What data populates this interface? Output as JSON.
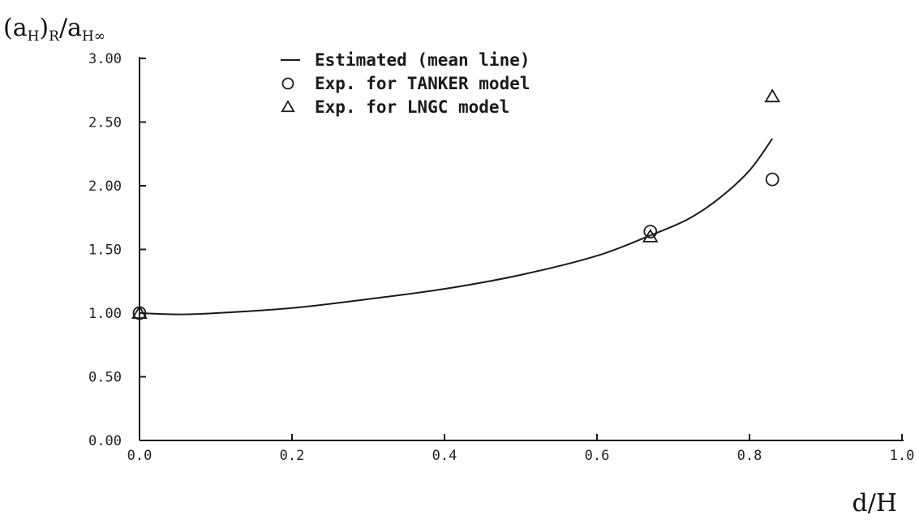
{
  "chart_data": {
    "type": "line",
    "xlabel": "d/H",
    "ylabel": {
      "parts": [
        {
          "t": "(a",
          "sub": false
        },
        {
          "t": "H",
          "sub": true
        },
        {
          "t": ")",
          "sub": false
        },
        {
          "t": "R",
          "sub": true
        },
        {
          "t": "/a",
          "sub": false
        },
        {
          "t": "H∞",
          "sub": true
        }
      ]
    },
    "xlim": [
      0.0,
      1.0
    ],
    "ylim": [
      0.0,
      3.0
    ],
    "xticks": [
      0.0,
      0.2,
      0.4,
      0.6,
      0.8,
      1.0
    ],
    "xtick_labels": [
      "0.0",
      "0.2",
      "0.4",
      "0.6",
      "0.8",
      "1.0"
    ],
    "yticks": [
      0.0,
      0.5,
      1.0,
      1.5,
      2.0,
      2.5,
      3.0
    ],
    "ytick_labels": [
      "0.00",
      "0.50",
      "1.00",
      "1.50",
      "2.00",
      "2.50",
      "3.00"
    ],
    "grid": false,
    "legend_position": "top-center",
    "series": [
      {
        "name": "Estimated (mean line)",
        "kind": "line",
        "x": [
          0.0,
          0.05,
          0.1,
          0.2,
          0.3,
          0.4,
          0.5,
          0.6,
          0.67,
          0.72,
          0.76,
          0.8,
          0.83
        ],
        "y": [
          1.0,
          0.99,
          1.0,
          1.04,
          1.11,
          1.19,
          1.3,
          1.45,
          1.61,
          1.74,
          1.9,
          2.12,
          2.37
        ]
      },
      {
        "name": "Exp. for TANKER model",
        "kind": "scatter",
        "marker": "circle",
        "x": [
          0.0,
          0.67,
          0.83
        ],
        "y": [
          1.0,
          1.64,
          2.05
        ]
      },
      {
        "name": "Exp. for LNGC model",
        "kind": "scatter",
        "marker": "triangle",
        "x": [
          0.0,
          0.67,
          0.83
        ],
        "y": [
          1.0,
          1.6,
          2.7
        ]
      }
    ],
    "legend": [
      {
        "symbol": "line",
        "label": "Estimated (mean line)"
      },
      {
        "symbol": "circle",
        "label": "Exp. for TANKER model"
      },
      {
        "symbol": "triangle",
        "label": "Exp. for LNGC model"
      }
    ]
  }
}
